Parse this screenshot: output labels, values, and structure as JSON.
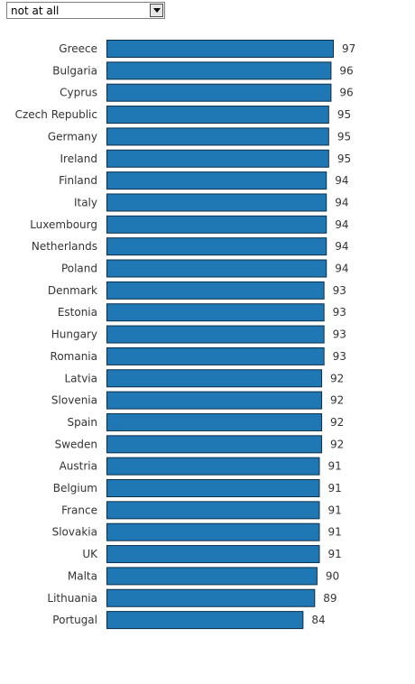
{
  "filter": {
    "selected": "not at all"
  },
  "colors": {
    "bar_fill": "#1f77b4",
    "bar_stroke": "#0d2f4a"
  },
  "chart_data": {
    "type": "bar",
    "orientation": "horizontal",
    "categories": [
      "Greece",
      "Bulgaria",
      "Cyprus",
      "Czech Republic",
      "Germany",
      "Ireland",
      "Finland",
      "Italy",
      "Luxembourg",
      "Netherlands",
      "Poland",
      "Denmark",
      "Estonia",
      "Hungary",
      "Romania",
      "Latvia",
      "Slovenia",
      "Spain",
      "Sweden",
      "Austria",
      "Belgium",
      "France",
      "Slovakia",
      "UK",
      "Malta",
      "Lithuania",
      "Portugal"
    ],
    "values": [
      97,
      96,
      96,
      95,
      95,
      95,
      94,
      94,
      94,
      94,
      94,
      93,
      93,
      93,
      93,
      92,
      92,
      92,
      92,
      91,
      91,
      91,
      91,
      91,
      90,
      89,
      84
    ],
    "xlim": [
      0,
      97
    ],
    "grid": false,
    "legend": "none"
  }
}
